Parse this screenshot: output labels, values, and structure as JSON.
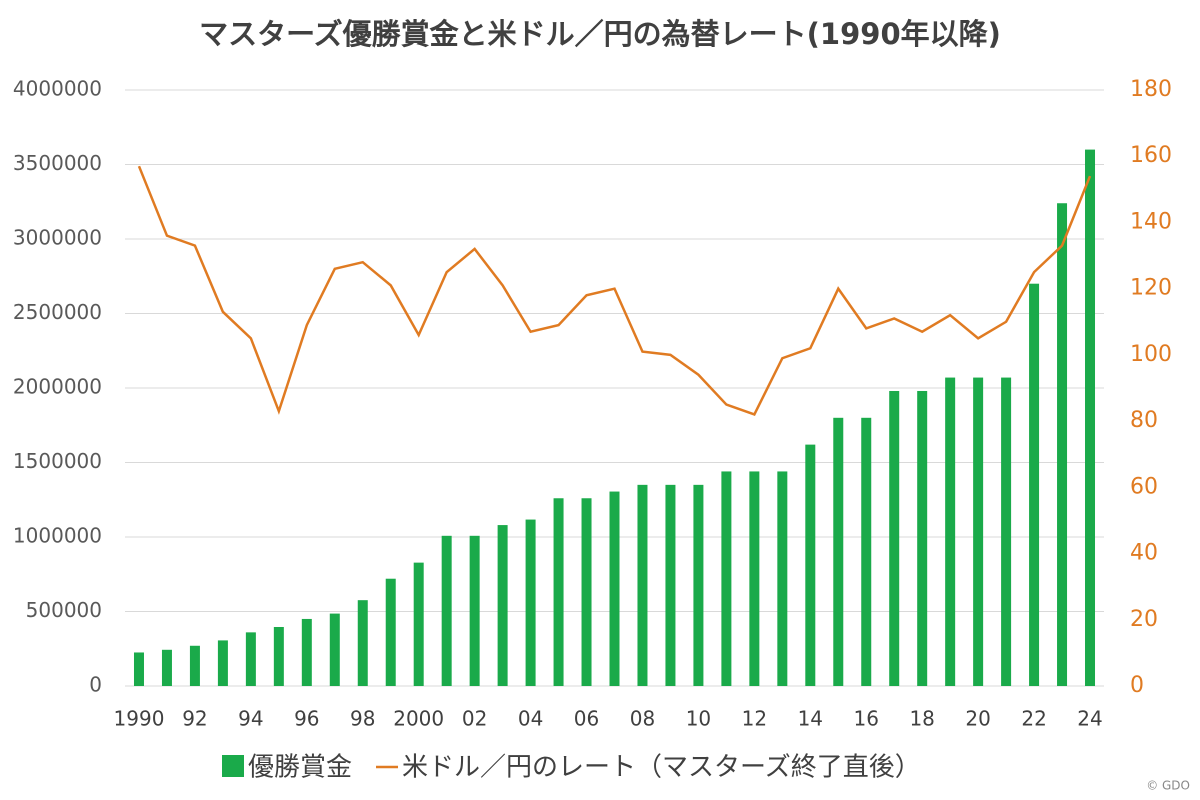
{
  "chart_data": {
    "type": "bar-line",
    "title": "マスターズ優勝賞金と米ドル／円の為替レート(1990年以降)",
    "credit": "© GDO",
    "categories": [
      "1990",
      null,
      "92",
      null,
      "94",
      null,
      "96",
      null,
      "98",
      null,
      "2000",
      null,
      "02",
      null,
      "04",
      null,
      "06",
      null,
      "08",
      null,
      "10",
      null,
      "12",
      null,
      "14",
      null,
      "16",
      null,
      "18",
      null,
      "20",
      null,
      "22",
      null,
      "24"
    ],
    "series": [
      {
        "name": "優勝賞金",
        "type": "bar",
        "color": "#1aaa4a",
        "axis": "y",
        "values": [
          225000,
          243000,
          270000,
          306000,
          360000,
          396000,
          450000,
          486000,
          576000,
          720000,
          828000,
          1008000,
          1008000,
          1080000,
          1117000,
          1260000,
          1260000,
          1305000,
          1350000,
          1350000,
          1350000,
          1440000,
          1440000,
          1440000,
          1620000,
          1800000,
          1800000,
          1980000,
          1980000,
          2070000,
          2070000,
          2070000,
          2700000,
          3240000,
          3600000
        ]
      },
      {
        "name": "米ドル／円のレート（マスターズ終了直後）",
        "type": "line",
        "color": "#e07b22",
        "axis": "y2",
        "values": [
          157,
          136,
          133,
          113,
          105,
          83,
          109,
          126,
          128,
          121,
          106,
          125,
          132,
          121,
          107,
          109,
          118,
          120,
          101,
          100,
          94,
          85,
          82,
          99,
          102,
          120,
          108,
          111,
          107,
          112,
          105,
          110,
          125,
          133,
          154
        ]
      }
    ],
    "ylim": [
      0,
      4000000
    ],
    "yticks": [
      0,
      500000,
      1000000,
      1500000,
      2000000,
      2500000,
      3000000,
      3500000,
      4000000
    ],
    "y2lim": [
      0,
      180
    ],
    "y2ticks": [
      0,
      20,
      40,
      60,
      80,
      100,
      120,
      140,
      160,
      180
    ],
    "grid": true,
    "legend": "bottom"
  }
}
